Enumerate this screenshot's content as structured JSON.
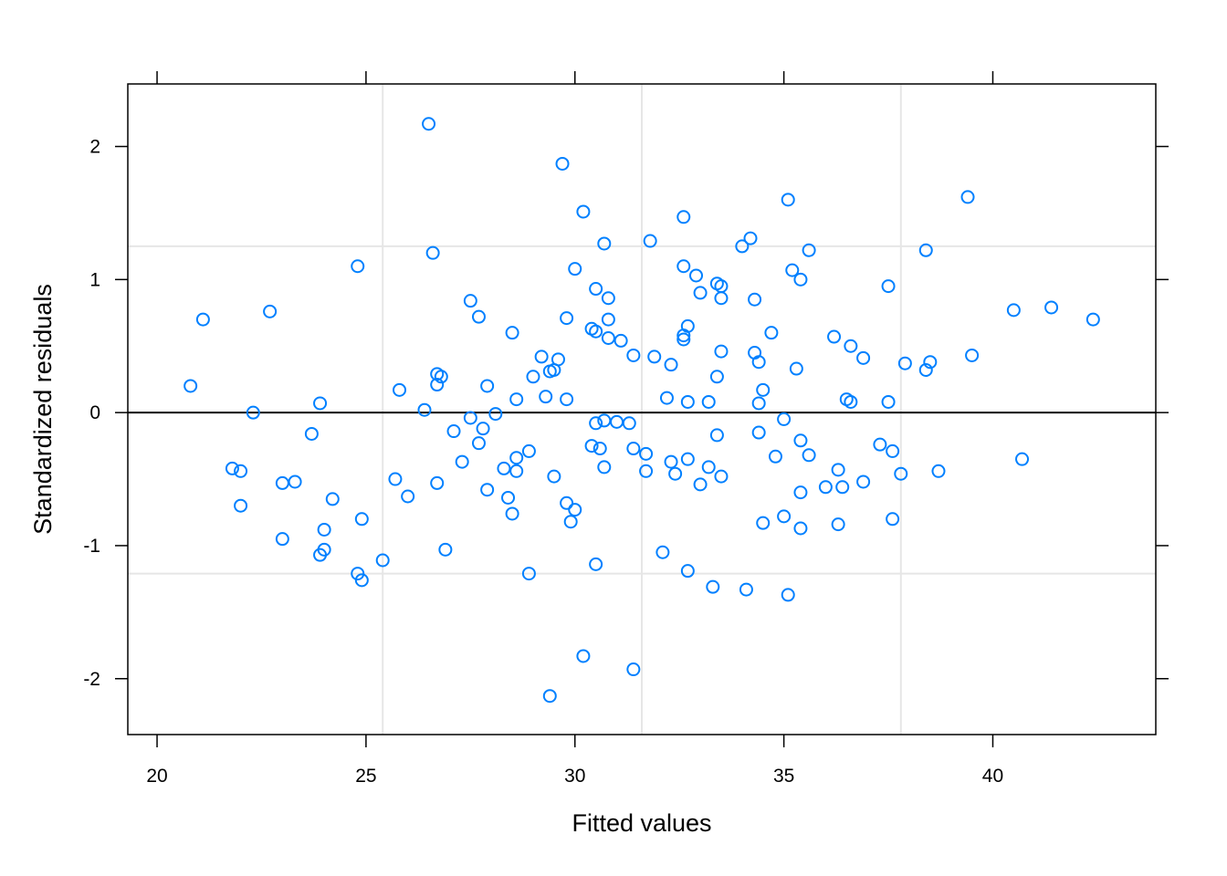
{
  "chart_data": {
    "type": "scatter",
    "title": "",
    "xlabel": "Fitted values",
    "ylabel": "Standardized residuals",
    "xlim": [
      19.3,
      43.9
    ],
    "ylim": [
      -2.42,
      2.47
    ],
    "x_ticks": [
      20,
      25,
      30,
      35,
      40
    ],
    "y_ticks": [
      -2,
      -1,
      0,
      1,
      2
    ],
    "x_tick_labels": [
      "20",
      "25",
      "30",
      "35",
      "40"
    ],
    "y_tick_labels": [
      "-2",
      "-1",
      "0",
      "1",
      "2"
    ],
    "x_grid": [
      25.4,
      31.6,
      37.8
    ],
    "y_grid": [
      -1.21,
      1.25
    ],
    "reference_line_y": 0,
    "grid": true,
    "marker_color": "#0080ff",
    "points": [
      [
        20.8,
        0.2
      ],
      [
        21.1,
        0.7
      ],
      [
        21.8,
        -0.42
      ],
      [
        22.0,
        -0.44
      ],
      [
        22.0,
        -0.7
      ],
      [
        22.3,
        0.0
      ],
      [
        22.7,
        0.76
      ],
      [
        23.0,
        -0.53
      ],
      [
        23.0,
        -0.95
      ],
      [
        23.3,
        -0.52
      ],
      [
        23.7,
        -0.16
      ],
      [
        23.9,
        0.07
      ],
      [
        23.9,
        -1.07
      ],
      [
        24.0,
        -1.03
      ],
      [
        24.0,
        -0.88
      ],
      [
        24.2,
        -0.65
      ],
      [
        24.8,
        1.1
      ],
      [
        24.8,
        -1.21
      ],
      [
        24.9,
        -1.26
      ],
      [
        24.9,
        -0.8
      ],
      [
        25.4,
        -1.11
      ],
      [
        25.7,
        -0.5
      ],
      [
        25.8,
        0.17
      ],
      [
        26.0,
        -0.63
      ],
      [
        26.4,
        0.02
      ],
      [
        26.5,
        2.17
      ],
      [
        26.6,
        1.2
      ],
      [
        26.7,
        0.21
      ],
      [
        26.7,
        0.29
      ],
      [
        26.8,
        0.27
      ],
      [
        26.7,
        -0.53
      ],
      [
        26.9,
        -1.03
      ],
      [
        27.1,
        -0.14
      ],
      [
        27.3,
        -0.37
      ],
      [
        27.5,
        -0.04
      ],
      [
        27.5,
        0.84
      ],
      [
        27.7,
        0.72
      ],
      [
        27.7,
        -0.23
      ],
      [
        27.8,
        -0.12
      ],
      [
        27.9,
        -0.58
      ],
      [
        27.9,
        0.2
      ],
      [
        28.1,
        -0.01
      ],
      [
        28.3,
        -0.42
      ],
      [
        28.4,
        -0.64
      ],
      [
        28.5,
        0.6
      ],
      [
        28.5,
        -0.76
      ],
      [
        28.6,
        -0.44
      ],
      [
        28.6,
        -0.34
      ],
      [
        28.6,
        0.1
      ],
      [
        28.9,
        -0.29
      ],
      [
        28.9,
        -1.21
      ],
      [
        29.0,
        0.27
      ],
      [
        29.2,
        0.42
      ],
      [
        29.3,
        0.12
      ],
      [
        29.4,
        0.31
      ],
      [
        29.5,
        0.32
      ],
      [
        29.4,
        -2.13
      ],
      [
        29.5,
        -0.48
      ],
      [
        29.6,
        0.4
      ],
      [
        29.7,
        1.87
      ],
      [
        29.8,
        0.71
      ],
      [
        29.8,
        0.1
      ],
      [
        29.8,
        -0.68
      ],
      [
        29.9,
        -0.82
      ],
      [
        30.0,
        -0.73
      ],
      [
        30.0,
        1.08
      ],
      [
        30.2,
        1.51
      ],
      [
        30.2,
        -1.83
      ],
      [
        30.4,
        0.63
      ],
      [
        30.4,
        -0.25
      ],
      [
        30.5,
        0.93
      ],
      [
        30.5,
        0.61
      ],
      [
        30.5,
        -0.08
      ],
      [
        30.5,
        -1.14
      ],
      [
        30.6,
        -0.27
      ],
      [
        30.7,
        -0.41
      ],
      [
        30.7,
        -0.06
      ],
      [
        30.7,
        1.27
      ],
      [
        30.8,
        0.86
      ],
      [
        30.8,
        0.56
      ],
      [
        30.8,
        0.7
      ],
      [
        31.0,
        -0.07
      ],
      [
        31.1,
        0.54
      ],
      [
        31.3,
        -0.08
      ],
      [
        31.4,
        0.43
      ],
      [
        31.4,
        -0.27
      ],
      [
        31.4,
        -1.93
      ],
      [
        31.7,
        -0.31
      ],
      [
        31.7,
        -0.44
      ],
      [
        31.8,
        1.29
      ],
      [
        31.9,
        0.42
      ],
      [
        32.1,
        -1.05
      ],
      [
        32.2,
        0.11
      ],
      [
        32.3,
        0.36
      ],
      [
        32.3,
        -0.37
      ],
      [
        32.4,
        -0.46
      ],
      [
        32.6,
        1.1
      ],
      [
        32.6,
        1.47
      ],
      [
        32.6,
        0.55
      ],
      [
        32.6,
        0.58
      ],
      [
        32.7,
        0.65
      ],
      [
        32.7,
        -0.35
      ],
      [
        32.7,
        -1.19
      ],
      [
        32.7,
        0.08
      ],
      [
        32.9,
        1.03
      ],
      [
        33.0,
        0.9
      ],
      [
        33.0,
        -0.54
      ],
      [
        33.2,
        0.08
      ],
      [
        33.2,
        -0.41
      ],
      [
        33.3,
        -1.31
      ],
      [
        33.4,
        0.97
      ],
      [
        33.4,
        -0.17
      ],
      [
        33.4,
        0.27
      ],
      [
        33.5,
        0.46
      ],
      [
        33.5,
        0.95
      ],
      [
        33.5,
        0.86
      ],
      [
        33.5,
        -0.48
      ],
      [
        34.0,
        1.25
      ],
      [
        34.1,
        -1.33
      ],
      [
        34.2,
        1.31
      ],
      [
        34.3,
        0.45
      ],
      [
        34.3,
        0.85
      ],
      [
        34.4,
        0.07
      ],
      [
        34.4,
        -0.15
      ],
      [
        34.4,
        0.38
      ],
      [
        34.5,
        -0.83
      ],
      [
        34.5,
        0.17
      ],
      [
        34.7,
        0.6
      ],
      [
        34.8,
        -0.33
      ],
      [
        35.0,
        -0.78
      ],
      [
        35.0,
        -0.05
      ],
      [
        35.1,
        -1.37
      ],
      [
        35.1,
        1.6
      ],
      [
        35.2,
        1.07
      ],
      [
        35.3,
        0.33
      ],
      [
        35.4,
        -0.87
      ],
      [
        35.4,
        -0.21
      ],
      [
        35.4,
        -0.6
      ],
      [
        35.4,
        1.0
      ],
      [
        35.6,
        1.22
      ],
      [
        35.6,
        -0.32
      ],
      [
        36.0,
        -0.56
      ],
      [
        36.2,
        0.57
      ],
      [
        36.3,
        -0.84
      ],
      [
        36.3,
        -0.43
      ],
      [
        36.4,
        -0.56
      ],
      [
        36.5,
        0.1
      ],
      [
        36.6,
        0.5
      ],
      [
        36.6,
        0.08
      ],
      [
        36.9,
        -0.52
      ],
      [
        36.9,
        0.41
      ],
      [
        37.3,
        -0.24
      ],
      [
        37.5,
        0.08
      ],
      [
        37.5,
        0.95
      ],
      [
        37.6,
        -0.29
      ],
      [
        37.6,
        -0.8
      ],
      [
        37.8,
        -0.46
      ],
      [
        37.9,
        0.37
      ],
      [
        38.4,
        0.32
      ],
      [
        38.4,
        1.22
      ],
      [
        38.5,
        0.38
      ],
      [
        38.7,
        -0.44
      ],
      [
        39.4,
        1.62
      ],
      [
        39.5,
        0.43
      ],
      [
        40.5,
        0.77
      ],
      [
        40.7,
        -0.35
      ],
      [
        41.4,
        0.79
      ],
      [
        42.4,
        0.7
      ]
    ]
  }
}
